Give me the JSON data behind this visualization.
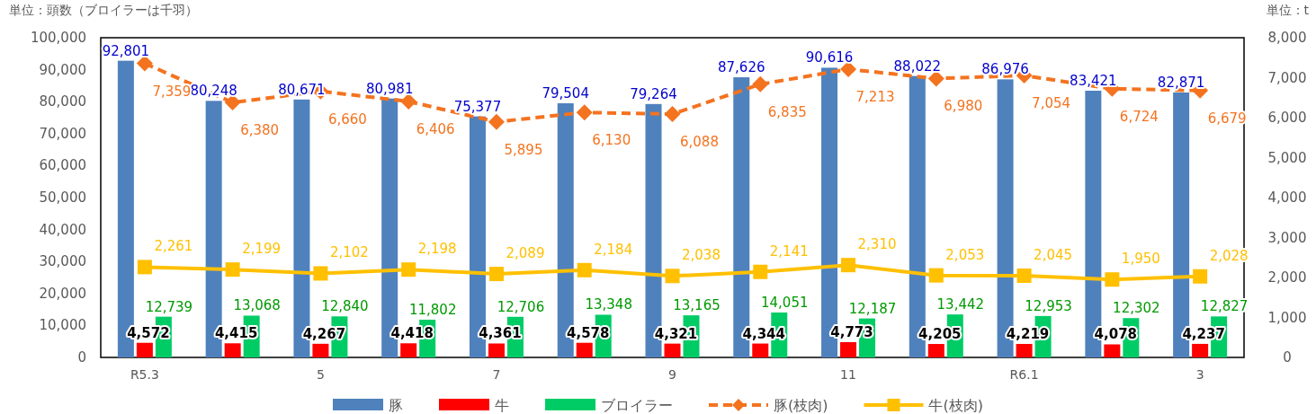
{
  "chart_data": {
    "type": "bar",
    "annotations": [
      "単位：頭数（ブロイラーは千羽）",
      "単位：t"
    ],
    "categories": [
      "R5.3",
      null,
      "5",
      null,
      "7",
      null,
      "9",
      null,
      "11",
      null,
      "R6.1",
      null,
      "3"
    ],
    "series": [
      {
        "name": "豚",
        "color": "#4f81bd",
        "values": [
          92801,
          80248,
          80671,
          80981,
          75377,
          79504,
          79264,
          87626,
          90616,
          88022,
          86976,
          83421,
          82871
        ],
        "value_labels": [
          "92,801",
          "80,248",
          "80,671",
          "80,981",
          "75,377",
          "79,504",
          "79,264",
          "87,626",
          "90,616",
          "88,022",
          "86,976",
          "83,421",
          "82,871"
        ]
      },
      {
        "name": "牛",
        "color": "#ff0000",
        "values": [
          4572,
          4415,
          4267,
          4418,
          4361,
          4578,
          4321,
          4344,
          4773,
          4205,
          4219,
          4078,
          4237
        ],
        "value_labels": [
          "4,572",
          "4,415",
          "4,267",
          "4,418",
          "4,361",
          "4,578",
          "4,321",
          "4,344",
          "4,773",
          "4,205",
          "4,219",
          "4,078",
          "4,237"
        ]
      },
      {
        "name": "ブロイラー",
        "color": "#00cc66",
        "values": [
          12739,
          13068,
          12840,
          11802,
          12706,
          13348,
          13165,
          14051,
          12187,
          13442,
          12953,
          12302,
          12827
        ],
        "value_labels": [
          "12,739",
          "13,068",
          "12,840",
          "11,802",
          "12,706",
          "13,348",
          "13,165",
          "14,051",
          "12,187",
          "13,442",
          "12,953",
          "12,302",
          "12,827"
        ]
      },
      {
        "name": "豚(枝肉)",
        "type": "line",
        "axis": "y2",
        "color": "#f4731f",
        "marker": "diamond",
        "line_style": "dashed",
        "values": [
          7359,
          6380,
          6660,
          6406,
          5895,
          6130,
          6088,
          6835,
          7213,
          6980,
          7054,
          6724,
          6679
        ],
        "value_labels": [
          "7,359",
          "6,380",
          "6,660",
          "6,406",
          "5,895",
          "6,130",
          "6,088",
          "6,835",
          "7,213",
          "6,980",
          "7,054",
          "6,724",
          "6,679"
        ]
      },
      {
        "name": "牛(枝肉)",
        "type": "line",
        "axis": "y2",
        "color": "#ffc000",
        "marker": "square",
        "line_style": "solid",
        "values": [
          2261,
          2199,
          2102,
          2198,
          2089,
          2184,
          2038,
          2141,
          2310,
          2053,
          2045,
          1950,
          2028
        ],
        "value_labels": [
          "2,261",
          "2,199",
          "2,102",
          "2,198",
          "2,089",
          "2,184",
          "2,038",
          "2,141",
          "2,310",
          "2,053",
          "2,045",
          "1,950",
          "2,028"
        ]
      }
    ],
    "ylim": [
      0,
      100000
    ],
    "yticks": [
      {
        "value": 0,
        "label": "0"
      },
      {
        "value": 10000,
        "label": "10,000"
      },
      {
        "value": 20000,
        "label": "20,000"
      },
      {
        "value": 30000,
        "label": "30,000"
      },
      {
        "value": 40000,
        "label": "40,000"
      },
      {
        "value": 50000,
        "label": "50,000"
      },
      {
        "value": 60000,
        "label": "60,000"
      },
      {
        "value": 70000,
        "label": "70,000"
      },
      {
        "value": 80000,
        "label": "80,000"
      },
      {
        "value": 90000,
        "label": "90,000"
      },
      {
        "value": 100000,
        "label": "100,000"
      }
    ],
    "y2lim": [
      0,
      8000
    ],
    "y2ticks": [
      {
        "value": 0,
        "label": "0"
      },
      {
        "value": 1000,
        "label": "1,000"
      },
      {
        "value": 2000,
        "label": "2,000"
      },
      {
        "value": 3000,
        "label": "3,000"
      },
      {
        "value": 4000,
        "label": "4,000"
      },
      {
        "value": 5000,
        "label": "5,000"
      },
      {
        "value": 6000,
        "label": "6,000"
      },
      {
        "value": 7000,
        "label": "7,000"
      },
      {
        "value": 8000,
        "label": "8,000"
      }
    ],
    "legend": "bottom",
    "grid": false
  }
}
